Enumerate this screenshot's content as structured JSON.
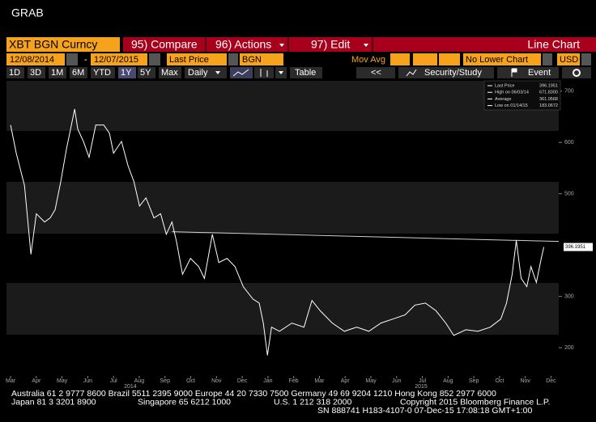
{
  "header": {
    "title": "GRAB"
  },
  "toolbar": {
    "ticker": "XBT BGN Curncy",
    "buttons": [
      "95) Compare",
      "96) Actions",
      "97) Edit"
    ],
    "view": "Line Chart"
  },
  "controls": {
    "start": "12/08/2014",
    "separator": "-",
    "end": "12/07/2015",
    "field": "Last Price",
    "source": "BGN",
    "study": "Mov Avg",
    "lower": "No Lower Chart",
    "currency": "USD"
  },
  "periods": [
    "1D",
    "3D",
    "1M",
    "6M",
    "YTD",
    "1Y",
    "5Y",
    "Max"
  ],
  "frequency": "Daily",
  "table": "Table",
  "back": "<<",
  "security_study": "Security/Study",
  "event": "Event",
  "chart_data": {
    "type": "line",
    "series": [
      {
        "name": "Last Price",
        "color": "#ffffff",
        "x": [
          0,
          0.22,
          0.54,
          0.79,
          1.0,
          1.32,
          1.54,
          1.73,
          1.95,
          2.17,
          2.49,
          2.61,
          2.83,
          3.05,
          3.31,
          3.62,
          3.84,
          4.0,
          4.31,
          4.56,
          4.79,
          5.01,
          5.26,
          5.57,
          5.83,
          6.05,
          6.27,
          6.45,
          6.68,
          6.99,
          7.31,
          7.53,
          7.84,
          8.09,
          8.41,
          8.72,
          9.04,
          9.41,
          9.66,
          9.82,
          9.98,
          10.14,
          10.45,
          10.93,
          11.4,
          11.71,
          12.03,
          12.5,
          12.97,
          13.45,
          13.92,
          14.39,
          14.86,
          15.33,
          15.71,
          16.12,
          16.53,
          16.91,
          17.22,
          17.69,
          18.16,
          18.64,
          19.05,
          19.27,
          19.49,
          19.65,
          19.84,
          20.06,
          20.22,
          20.43,
          20.62,
          20.72
        ],
        "values": [
          634,
          579,
          516,
          382,
          461,
          445,
          453,
          469,
          524,
          587,
          665,
          626,
          602,
          571,
          634,
          634,
          618,
          579,
          602,
          555,
          524,
          476,
          492,
          453,
          461,
          421,
          445,
          406,
          343,
          374,
          358,
          335,
          421,
          366,
          374,
          358,
          319,
          295,
          287,
          248,
          185,
          240,
          232,
          248,
          240,
          292,
          272,
          248,
          232,
          240,
          232,
          248,
          256,
          264,
          283,
          287,
          272,
          248,
          224,
          235,
          232,
          240,
          256,
          287,
          343,
          409,
          335,
          319,
          358,
          327,
          374,
          396.1951
        ]
      }
    ],
    "trendline": {
      "x": [
        6.27,
        21.3
      ],
      "values": [
        426,
        407
      ],
      "color": "#d0d0d0"
    },
    "xlim": [
      -0.16,
      21.3
    ],
    "xticks": [
      {
        "value": 0,
        "label": "Mar"
      },
      {
        "value": 1,
        "label": "Apr"
      },
      {
        "value": 2,
        "label": "May"
      },
      {
        "value": 3,
        "label": "Jun"
      },
      {
        "value": 4,
        "label": "Jul"
      },
      {
        "value": 5,
        "label": "Aug"
      },
      {
        "value": 6,
        "label": "Sep"
      },
      {
        "value": 7,
        "label": "Oct"
      },
      {
        "value": 8,
        "label": "Nov"
      },
      {
        "value": 9,
        "label": "Dec"
      },
      {
        "value": 10,
        "label": "Jan"
      },
      {
        "value": 11,
        "label": "Feb"
      },
      {
        "value": 12,
        "label": "Mar"
      },
      {
        "value": 13,
        "label": "Apr"
      },
      {
        "value": 14,
        "label": "May"
      },
      {
        "value": 15,
        "label": "Jun"
      },
      {
        "value": 16,
        "label": "Jul"
      },
      {
        "value": 17,
        "label": "Aug"
      },
      {
        "value": 18,
        "label": "Sep"
      },
      {
        "value": 19,
        "label": "Oct"
      },
      {
        "value": 20,
        "label": "Nov"
      },
      {
        "value": 21,
        "label": "Dec"
      }
    ],
    "year_labels": [
      {
        "value": 4.65,
        "label": "2014"
      },
      {
        "value": 15.95,
        "label": "2015"
      }
    ],
    "ylim": [
      145,
      720
    ],
    "yticks": [
      200,
      300,
      500,
      600,
      700
    ],
    "legend": [
      {
        "name": "Last Price",
        "value": "396.1951"
      },
      {
        "name": "High on 06/03/14",
        "value": "671.8300"
      },
      {
        "name": "Average",
        "value": "361.0568"
      },
      {
        "name": "Low on 01/14/15",
        "value": "183.0672"
      }
    ]
  },
  "footer": {
    "lines": [
      [
        "Australia 61 2 9777 8600 Brazil 5511 2395 9000 Europe 44 20 7330 7500 Germany 49 69 9204 1210 Hong Kong 852 2977 6000"
      ],
      [
        "Japan 81 3 3201 8900",
        "Singapore 65 6212 1000",
        "U.S. 1 212 318 2000",
        "Copyright 2015 Bloomberg Finance L.P."
      ],
      [
        "SN 888741 H183-4107-0 07-Dec-15 17:08:18 GMT+1:00"
      ]
    ]
  }
}
